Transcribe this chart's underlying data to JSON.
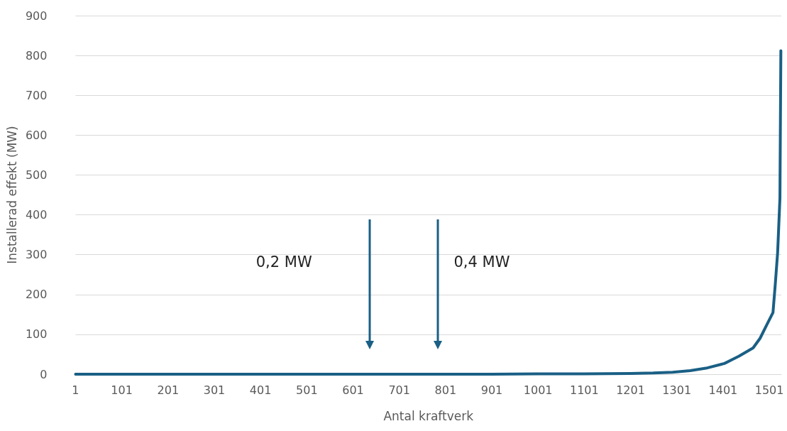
{
  "chart_data": {
    "type": "line",
    "xlabel": "Antal kraftverk",
    "ylabel": "Installerad effekt (MW)",
    "x": [
      1,
      200,
      400,
      628,
      775,
      900,
      1000,
      1100,
      1200,
      1250,
      1292,
      1330,
      1364,
      1404,
      1435,
      1466,
      1481,
      1496,
      1509,
      1514,
      1519,
      1524,
      1526
    ],
    "series": [
      {
        "color": "#1a5f85",
        "values": [
          0,
          0,
          0,
          0,
          0,
          0,
          1,
          1,
          2,
          3,
          5,
          9,
          15,
          27,
          45,
          66,
          90,
          125,
          155,
          227,
          305,
          442,
          812
        ]
      }
    ],
    "xlim": [
      1,
      1527
    ],
    "xticks": [
      1,
      101,
      201,
      301,
      401,
      501,
      601,
      701,
      801,
      901,
      1001,
      1101,
      1201,
      1301,
      1401,
      1501
    ],
    "ylim": [
      0,
      900
    ],
    "yticks": [
      0,
      100,
      200,
      300,
      400,
      500,
      600,
      700,
      800,
      900
    ],
    "grid": "y",
    "marker": "none",
    "line_style": "solid",
    "annotations": [
      "0,2 MW",
      "0,4 MW"
    ]
  }
}
